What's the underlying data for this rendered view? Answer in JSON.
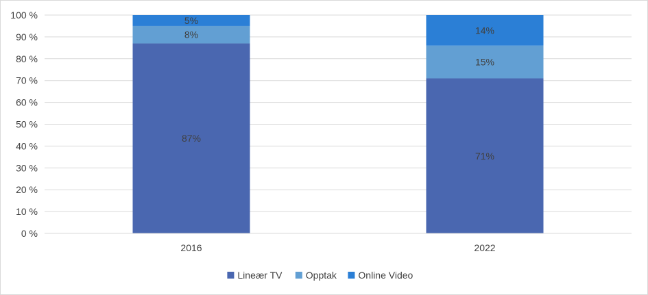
{
  "chart_data": {
    "type": "bar",
    "stacked": true,
    "percent": true,
    "categories": [
      "2016",
      "2022"
    ],
    "series": [
      {
        "name": "Lineær TV",
        "values": [
          87,
          71
        ],
        "labels": [
          "87%",
          "71%"
        ],
        "color": "#4a67b0"
      },
      {
        "name": "Opptak",
        "values": [
          8,
          15
        ],
        "labels": [
          "8%",
          "15%"
        ],
        "color": "#629fd3"
      },
      {
        "name": "Online Video",
        "values": [
          5,
          14
        ],
        "labels": [
          "5%",
          "14%"
        ],
        "color": "#2b7fd6"
      }
    ],
    "y_ticks": [
      "0 %",
      "10 %",
      "20 %",
      "30 %",
      "40 %",
      "50 %",
      "60 %",
      "70 %",
      "80 %",
      "90 %",
      "100 %"
    ],
    "ylim": [
      0,
      100
    ],
    "grid": true,
    "legend_position": "bottom",
    "title": "",
    "xlabel": "",
    "ylabel": ""
  }
}
